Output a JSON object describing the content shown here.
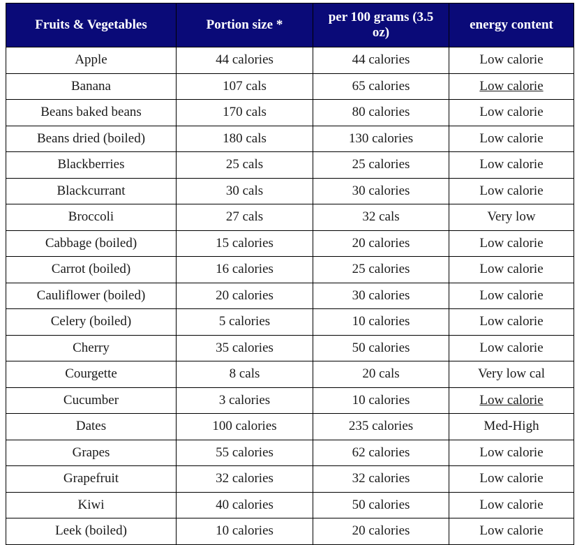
{
  "table": {
    "headers": [
      "Fruits & Vegetables",
      "Portion size *",
      "per 100 grams (3.5 oz)",
      "energy content"
    ],
    "rows": [
      {
        "name": "Apple",
        "portion": "44 calories",
        "per100": "44 calories",
        "energy": "Low calorie",
        "energy_underlined": false
      },
      {
        "name": "Banana",
        "portion": "107 cals",
        "per100": "65 calories",
        "energy": "Low calorie",
        "energy_underlined": true
      },
      {
        "name": "Beans baked beans",
        "portion": "170 cals",
        "per100": "80 calories",
        "energy": "Low calorie",
        "energy_underlined": false
      },
      {
        "name": "Beans dried (boiled)",
        "portion": "180 cals",
        "per100": "130 calories",
        "energy": "Low calorie",
        "energy_underlined": false
      },
      {
        "name": "Blackberries",
        "portion": "25 cals",
        "per100": "25 calories",
        "energy": "Low calorie",
        "energy_underlined": false
      },
      {
        "name": "Blackcurrant",
        "portion": "30 cals",
        "per100": "30 calories",
        "energy": "Low calorie",
        "energy_underlined": false
      },
      {
        "name": "Broccoli",
        "portion": "27 cals",
        "per100": "32 cals",
        "energy": "Very low",
        "energy_underlined": false
      },
      {
        "name": "Cabbage (boiled)",
        "portion": "15 calories",
        "per100": "20 calories",
        "energy": "Low calorie",
        "energy_underlined": false
      },
      {
        "name": "Carrot (boiled)",
        "portion": "16 calories",
        "per100": "25 calories",
        "energy": "Low calorie",
        "energy_underlined": false
      },
      {
        "name": "Cauliflower (boiled)",
        "portion": "20 calories",
        "per100": "30 calories",
        "energy": "Low calorie",
        "energy_underlined": false
      },
      {
        "name": "Celery (boiled)",
        "portion": "5 calories",
        "per100": "10 calories",
        "energy": "Low calorie",
        "energy_underlined": false
      },
      {
        "name": "Cherry",
        "portion": "35 calories",
        "per100": "50 calories",
        "energy": "Low calorie",
        "energy_underlined": false
      },
      {
        "name": "Courgette",
        "portion": "8 cals",
        "per100": "20 cals",
        "energy": "Very low cal",
        "energy_underlined": false
      },
      {
        "name": "Cucumber",
        "portion": "3 calories",
        "per100": "10 calories",
        "energy": "Low calorie",
        "energy_underlined": true
      },
      {
        "name": "Dates",
        "portion": "100 calories",
        "per100": "235 calories",
        "energy": "Med-High",
        "energy_underlined": false
      },
      {
        "name": "Grapes",
        "portion": "55 calories",
        "per100": "62 calories",
        "energy": "Low calorie",
        "energy_underlined": false
      },
      {
        "name": "Grapefruit",
        "portion": "32 calories",
        "per100": "32 calories",
        "energy": "Low calorie",
        "energy_underlined": false
      },
      {
        "name": "Kiwi",
        "portion": "40 calories",
        "per100": "50 calories",
        "energy": "Low calorie",
        "energy_underlined": false
      },
      {
        "name": "Leek (boiled)",
        "portion": "10 calories",
        "per100": "20 calories",
        "energy": "Low calorie",
        "energy_underlined": false
      }
    ]
  },
  "colors": {
    "header_background": "#0a0a78",
    "header_text": "#ffffff",
    "border": "#000000",
    "cell_text": "#1a1a1a"
  }
}
